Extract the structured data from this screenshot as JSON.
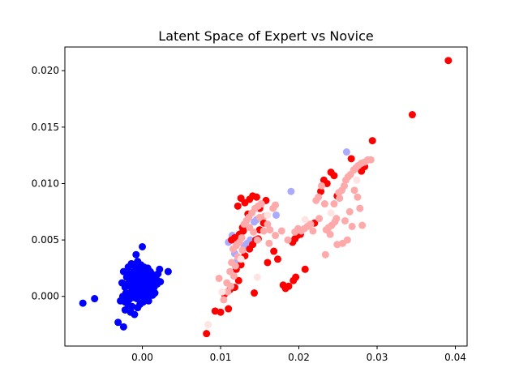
{
  "chart_data": {
    "type": "scatter",
    "title": "Latent Space of Expert vs Novice",
    "xlabel": "",
    "ylabel": "",
    "xlim": [
      -0.0099,
      0.0415
    ],
    "ylim": [
      -0.0044,
      0.0221
    ],
    "xticks": [
      0.0,
      0.01,
      0.02,
      0.03,
      0.04
    ],
    "xtick_labels": [
      "0.00",
      "0.01",
      "0.02",
      "0.03",
      "0.04"
    ],
    "yticks": [
      0.0,
      0.005,
      0.01,
      0.015,
      0.02
    ],
    "ytick_labels": [
      "0.000",
      "0.005",
      "0.010",
      "0.015",
      "0.020"
    ],
    "grid": false,
    "legend": "none",
    "colors": {
      "blue": "#0000ff",
      "light_blue": "#aaaaff",
      "red": "#ff0000",
      "light_red": "#ffaaaa",
      "pale_red": "#ffe4e4"
    },
    "series": [
      {
        "color": "#0000ff",
        "points": [
          [
            -0.0076,
            -0.0006
          ],
          [
            -0.0061,
            -0.0002
          ],
          [
            -0.0031,
            -0.0023
          ],
          [
            -0.0024,
            -0.0027
          ],
          [
            -0.0028,
            -0.0004
          ],
          [
            -0.0022,
            -0.0012
          ],
          [
            -0.0018,
            -0.0008
          ],
          [
            -0.0015,
            -0.0014
          ],
          [
            -0.001,
            -0.0016
          ],
          [
            -0.0006,
            -0.001
          ],
          [
            -0.0003,
            -0.0007
          ],
          [
            0.0001,
            -0.0005
          ],
          [
            0.0004,
            -0.0003
          ],
          [
            0.0008,
            -0.0004
          ],
          [
            -0.0025,
            0.0
          ],
          [
            -0.0021,
            0.0003
          ],
          [
            -0.0018,
            0.0001
          ],
          [
            -0.0014,
            0.0004
          ],
          [
            -0.0011,
            0.0002
          ],
          [
            -0.0008,
            0.0005
          ],
          [
            -0.0005,
            0.0
          ],
          [
            -0.0002,
            0.0003
          ],
          [
            0.0001,
            0.0006
          ],
          [
            0.0003,
            0.0001
          ],
          [
            0.0006,
            0.0004
          ],
          [
            0.0009,
            0.0002
          ],
          [
            0.0012,
            0.0005
          ],
          [
            0.0015,
            0.0008
          ],
          [
            0.0019,
            0.0011
          ],
          [
            0.0023,
            0.0013
          ],
          [
            0.0033,
            0.0022
          ],
          [
            -0.0022,
            0.0008
          ],
          [
            -0.0019,
            0.0011
          ],
          [
            -0.0016,
            0.0009
          ],
          [
            -0.0013,
            0.0013
          ],
          [
            -0.001,
            0.001
          ],
          [
            -0.0007,
            0.0014
          ],
          [
            -0.0004,
            0.0011
          ],
          [
            -0.0001,
            0.0015
          ],
          [
            0.0002,
            0.0012
          ],
          [
            0.0005,
            0.0016
          ],
          [
            0.0008,
            0.0013
          ],
          [
            0.0011,
            0.0017
          ],
          [
            0.0014,
            0.0014
          ],
          [
            0.0017,
            0.0018
          ],
          [
            0.002,
            0.002
          ],
          [
            0.0022,
            0.0024
          ],
          [
            -0.002,
            0.0017
          ],
          [
            -0.0017,
            0.002
          ],
          [
            -0.0014,
            0.0018
          ],
          [
            -0.0011,
            0.0022
          ],
          [
            -0.0008,
            0.0019
          ],
          [
            -0.0005,
            0.0023
          ],
          [
            -0.0002,
            0.002
          ],
          [
            0.0001,
            0.0024
          ],
          [
            0.0004,
            0.0021
          ],
          [
            0.0007,
            0.0025
          ],
          [
            0.001,
            0.0022
          ],
          [
            -0.0018,
            0.0026
          ],
          [
            -0.0014,
            0.0029
          ],
          [
            -0.001,
            0.0027
          ],
          [
            -0.0006,
            0.0031
          ],
          [
            -0.0002,
            0.0028
          ],
          [
            0.0002,
            0.0026
          ],
          [
            -0.0008,
            0.0037
          ],
          [
            0.0,
            0.0044
          ],
          [
            -0.0022,
            -0.0005
          ],
          [
            -0.0017,
            -0.0003
          ],
          [
            -0.0012,
            -0.0001
          ],
          [
            -0.0009,
            0.0007
          ],
          [
            -0.0004,
            0.0005
          ],
          [
            0.0002,
            -0.0001
          ],
          [
            0.0006,
            0.0008
          ],
          [
            0.001,
            0.0007
          ],
          [
            0.0013,
            0.0001
          ],
          [
            0.0016,
            0.0003
          ],
          [
            -0.0026,
            0.0012
          ],
          [
            -0.0024,
            0.0022
          ],
          [
            -0.0013,
            -0.0009
          ],
          [
            -0.0007,
            -0.0002
          ],
          [
            0.0003,
            0.0009
          ],
          [
            0.0007,
            0.0017
          ],
          [
            0.0011,
            0.0012
          ],
          [
            -0.0003,
            0.0018
          ],
          [
            -0.0015,
            0.0015
          ],
          [
            -0.0012,
            0.0006
          ],
          [
            0.0004,
            0.0014
          ],
          [
            0.0018,
            0.0015
          ],
          [
            0.0012,
            0.002
          ],
          [
            -0.0009,
            0.0024
          ]
        ]
      },
      {
        "color": "#aaaaff",
        "points": [
          [
            0.011,
            0.0048
          ],
          [
            0.0115,
            0.0054
          ],
          [
            0.0118,
            0.0038
          ],
          [
            0.0121,
            0.0031
          ],
          [
            0.013,
            0.0045
          ],
          [
            0.0134,
            0.0047
          ],
          [
            0.0138,
            0.005
          ],
          [
            0.0143,
            0.0066
          ],
          [
            0.0146,
            0.0068
          ],
          [
            0.0171,
            0.0072
          ],
          [
            0.019,
            0.0093
          ],
          [
            0.0261,
            0.0128
          ],
          [
            0.0126,
            0.0056
          ]
        ]
      },
      {
        "color": "#ff0000",
        "points": [
          [
            0.0082,
            -0.0033
          ],
          [
            0.0093,
            -0.0013
          ],
          [
            0.01,
            -0.0014
          ],
          [
            0.011,
            -0.0011
          ],
          [
            0.0105,
            0.0002
          ],
          [
            0.0112,
            0.0006
          ],
          [
            0.0118,
            0.0008
          ],
          [
            0.0123,
            0.0014
          ],
          [
            0.012,
            0.0024
          ],
          [
            0.0126,
            0.0028
          ],
          [
            0.0131,
            0.0036
          ],
          [
            0.0137,
            0.0042
          ],
          [
            0.0141,
            0.0046
          ],
          [
            0.0145,
            0.005
          ],
          [
            0.015,
            0.0059
          ],
          [
            0.0114,
            0.005
          ],
          [
            0.0118,
            0.0052
          ],
          [
            0.0124,
            0.0055
          ],
          [
            0.0129,
            0.0058
          ],
          [
            0.0122,
            0.008
          ],
          [
            0.0126,
            0.0087
          ],
          [
            0.0131,
            0.0083
          ],
          [
            0.0137,
            0.0086
          ],
          [
            0.0141,
            0.0089
          ],
          [
            0.0146,
            0.0088
          ],
          [
            0.015,
            0.0078
          ],
          [
            0.0158,
            0.0085
          ],
          [
            0.0143,
            0.0003
          ],
          [
            0.016,
            0.003
          ],
          [
            0.0168,
            0.004
          ],
          [
            0.0173,
            0.0033
          ],
          [
            0.018,
            0.001
          ],
          [
            0.0183,
            0.0007
          ],
          [
            0.0187,
            0.0009
          ],
          [
            0.0193,
            0.0014
          ],
          [
            0.0196,
            0.0017
          ],
          [
            0.0195,
            0.0051
          ],
          [
            0.0198,
            0.0054
          ],
          [
            0.0202,
            0.0055
          ],
          [
            0.0192,
            0.0048
          ],
          [
            0.0208,
            0.0024
          ],
          [
            0.022,
            0.0065
          ],
          [
            0.0228,
            0.0093
          ],
          [
            0.0232,
            0.0103
          ],
          [
            0.0236,
            0.01
          ],
          [
            0.0241,
            0.011
          ],
          [
            0.0245,
            0.0107
          ],
          [
            0.0249,
            0.0089
          ],
          [
            0.0267,
            0.0122
          ],
          [
            0.028,
            0.0111
          ],
          [
            0.0284,
            0.0115
          ],
          [
            0.0294,
            0.0138
          ],
          [
            0.0345,
            0.0161
          ],
          [
            0.0391,
            0.0209
          ],
          [
            0.0135,
            0.0073
          ],
          [
            0.0155,
            0.0065
          ],
          [
            0.0128,
            0.0061
          ],
          [
            0.0148,
            0.0051
          ]
        ]
      },
      {
        "color": "#ffaaaa",
        "points": [
          [
            0.0098,
            0.0016
          ],
          [
            0.0104,
            -0.0003
          ],
          [
            0.0108,
            0.0012
          ],
          [
            0.0114,
            0.003
          ],
          [
            0.0116,
            0.0042
          ],
          [
            0.012,
            0.0045
          ],
          [
            0.0124,
            0.0048
          ],
          [
            0.0127,
            0.0052
          ],
          [
            0.013,
            0.0064
          ],
          [
            0.0133,
            0.0067
          ],
          [
            0.0136,
            0.007
          ],
          [
            0.014,
            0.0074
          ],
          [
            0.0144,
            0.0078
          ],
          [
            0.0148,
            0.008
          ],
          [
            0.0152,
            0.0082
          ],
          [
            0.0156,
            0.0071
          ],
          [
            0.016,
            0.0064
          ],
          [
            0.0163,
            0.0059
          ],
          [
            0.0167,
            0.0078
          ],
          [
            0.017,
            0.0081
          ],
          [
            0.0112,
            0.0022
          ],
          [
            0.0117,
            0.0018
          ],
          [
            0.0122,
            0.0035
          ],
          [
            0.015,
            0.007
          ],
          [
            0.0155,
            0.0058
          ],
          [
            0.0203,
            0.0058
          ],
          [
            0.0207,
            0.006
          ],
          [
            0.0211,
            0.0062
          ],
          [
            0.0215,
            0.0064
          ],
          [
            0.0222,
            0.0085
          ],
          [
            0.0225,
            0.0088
          ],
          [
            0.0229,
            0.0098
          ],
          [
            0.0233,
            0.0082
          ],
          [
            0.0235,
            0.0059
          ],
          [
            0.0238,
            0.0061
          ],
          [
            0.0242,
            0.0063
          ],
          [
            0.0246,
            0.0066
          ],
          [
            0.0248,
            0.0069
          ],
          [
            0.0252,
            0.0087
          ],
          [
            0.0255,
            0.0094
          ],
          [
            0.0258,
            0.0098
          ],
          [
            0.026,
            0.0103
          ],
          [
            0.0263,
            0.0106
          ],
          [
            0.0266,
            0.0108
          ],
          [
            0.027,
            0.0112
          ],
          [
            0.0273,
            0.0114
          ],
          [
            0.0276,
            0.0116
          ],
          [
            0.028,
            0.0118
          ],
          [
            0.0284,
            0.0119
          ],
          [
            0.0288,
            0.0121
          ],
          [
            0.0292,
            0.0121
          ],
          [
            0.0271,
            0.0094
          ],
          [
            0.0275,
            0.0088
          ],
          [
            0.0278,
            0.0078
          ],
          [
            0.0281,
            0.0063
          ],
          [
            0.0268,
            0.0062
          ],
          [
            0.0262,
            0.005
          ],
          [
            0.0256,
            0.0047
          ],
          [
            0.0249,
            0.0046
          ],
          [
            0.0234,
            0.0037
          ],
          [
            0.024,
            0.0055
          ],
          [
            0.0245,
            0.0082
          ],
          [
            0.0251,
            0.0092
          ],
          [
            0.0265,
            0.0075
          ],
          [
            0.0259,
            0.0067
          ],
          [
            0.0226,
            0.0069
          ],
          [
            0.0218,
            0.0058
          ],
          [
            0.0199,
            0.006
          ],
          [
            0.0195,
            0.0057
          ],
          [
            0.0137,
            0.0061
          ],
          [
            0.0142,
            0.0057
          ],
          [
            0.0147,
            0.005
          ],
          [
            0.0162,
            0.0047
          ],
          [
            0.017,
            0.0054
          ],
          [
            0.0178,
            0.0058
          ],
          [
            0.0186,
            0.005
          ],
          [
            0.0128,
            0.0041
          ],
          [
            0.0119,
            0.0027
          ],
          [
            0.0109,
            0.0004
          ],
          [
            0.0113,
            0.0009
          ]
        ]
      },
      {
        "color": "#ffe4e4",
        "points": [
          [
            0.0084,
            -0.0025
          ],
          [
            0.0102,
            0.0004
          ],
          [
            0.0126,
            0.0033
          ],
          [
            0.0147,
            0.0017
          ],
          [
            0.016,
            0.0072
          ],
          [
            0.0208,
            0.0068
          ],
          [
            0.0241,
            0.0074
          ],
          [
            0.0274,
            0.0103
          ]
        ]
      }
    ]
  }
}
